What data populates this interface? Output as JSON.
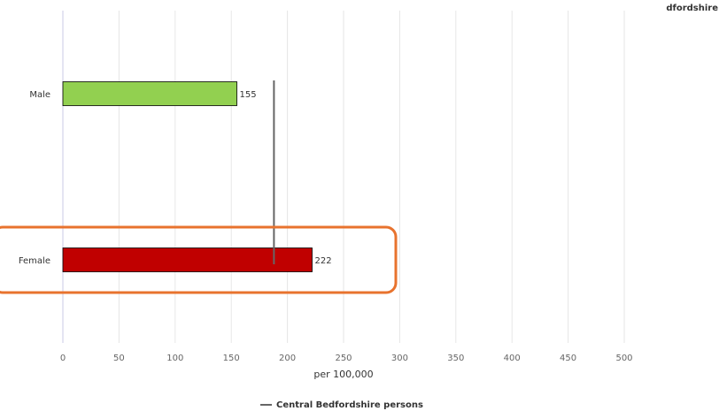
{
  "chart_data": {
    "type": "bar",
    "orientation": "horizontal",
    "title": "dfordshire",
    "categories": [
      "Male",
      "Female"
    ],
    "values": [
      155,
      222
    ],
    "bar_colors": [
      "#92d050",
      "#c00000"
    ],
    "data_labels": [
      "155",
      "222"
    ],
    "xlabel": "per 100,000",
    "xlim": [
      0,
      500
    ],
    "xticks": [
      "0",
      "50",
      "100",
      "150",
      "200",
      "250",
      "300",
      "350",
      "400",
      "450",
      "500"
    ],
    "grid": "vertical",
    "reference_line": {
      "name": "Central Bedfordshire persons",
      "value": 188,
      "color": "#666666"
    },
    "legend": {
      "position": "bottom",
      "label": "Central Bedfordshire persons"
    },
    "highlight": {
      "category": "Female",
      "color": "#e8732e"
    }
  }
}
